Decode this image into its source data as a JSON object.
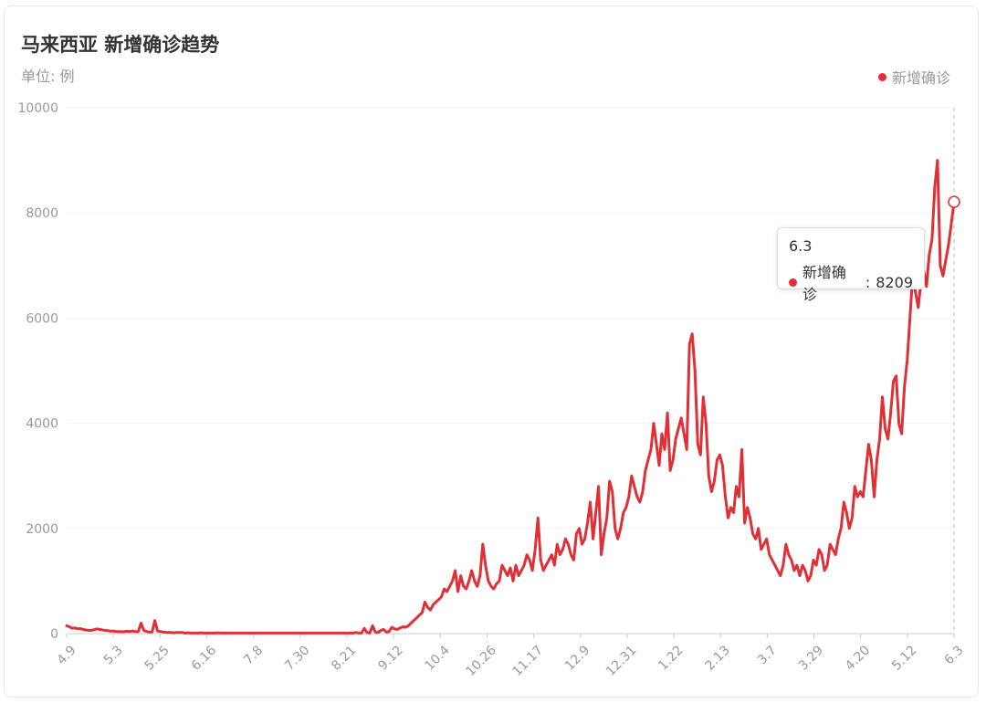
{
  "title": "马来西亚 新增确诊趋势",
  "subtitle": "单位: 例",
  "colors": {
    "line": "#e03036",
    "grid": "#f2f2f2",
    "axis": "#cccccc",
    "text": "#999999"
  },
  "tooltip": {
    "date": "6.3",
    "series_label": "新增确诊",
    "value": "8209"
  },
  "chart_data": {
    "type": "line",
    "ylim": [
      0,
      10000
    ],
    "y_ticks": [
      "0",
      "2000",
      "4000",
      "6000",
      "8000",
      "10000"
    ],
    "x_ticks": [
      "4.9",
      "5.3",
      "5.25",
      "6.16",
      "7.8",
      "7.30",
      "8.21",
      "9.12",
      "10.4",
      "10.26",
      "11.17",
      "12.9",
      "12.31",
      "1.22",
      "2.13",
      "3.7",
      "3.29",
      "4.20",
      "5.12",
      "6.3"
    ],
    "legend": "top-right",
    "series": [
      {
        "name": "新增确诊",
        "values": [
          150,
          130,
          100,
          110,
          90,
          95,
          80,
          70,
          60,
          60,
          75,
          90,
          80,
          70,
          60,
          55,
          45,
          50,
          40,
          40,
          35,
          40,
          45,
          40,
          50,
          40,
          40,
          200,
          60,
          40,
          30,
          30,
          250,
          50,
          40,
          30,
          25,
          20,
          20,
          15,
          20,
          20,
          20,
          10,
          15,
          10,
          10,
          10,
          10,
          15,
          10,
          10,
          10,
          10,
          10,
          15,
          10,
          10,
          10,
          10,
          10,
          10,
          10,
          10,
          10,
          10,
          10,
          10,
          10,
          10,
          10,
          10,
          10,
          10,
          10,
          10,
          10,
          10,
          10,
          10,
          10,
          10,
          10,
          10,
          10,
          10,
          10,
          10,
          10,
          10,
          10,
          10,
          10,
          10,
          10,
          10,
          10,
          10,
          10,
          10,
          10,
          10,
          10,
          10,
          10,
          20,
          10,
          10,
          100,
          20,
          10,
          150,
          30,
          20,
          60,
          80,
          30,
          40,
          120,
          90,
          80,
          110,
          130,
          120,
          150,
          200,
          250,
          300,
          350,
          400,
          600,
          500,
          450,
          550,
          600,
          650,
          700,
          850,
          800,
          900,
          1000,
          1200,
          800,
          1100,
          900,
          850,
          1000,
          1200,
          1000,
          900,
          1100,
          1700,
          1300,
          1000,
          900,
          850,
          950,
          1000,
          1300,
          1200,
          1100,
          1250,
          1000,
          1300,
          1100,
          1200,
          1300,
          1500,
          1400,
          1200,
          1600,
          2200,
          1400,
          1200,
          1300,
          1400,
          1500,
          1300,
          1700,
          1500,
          1600,
          1800,
          1700,
          1500,
          1400,
          1900,
          2000,
          1700,
          1800,
          2100,
          2500,
          1800,
          2300,
          2800,
          1500,
          1900,
          2200,
          2900,
          2700,
          2000,
          1800,
          2000,
          2300,
          2400,
          2600,
          3000,
          2800,
          2600,
          2500,
          2700,
          3100,
          3300,
          3500,
          4000,
          3600,
          3200,
          3800,
          3500,
          4200,
          3100,
          3300,
          3700,
          3900,
          4100,
          3800,
          3500,
          5500,
          5700,
          5000,
          3600,
          3400,
          4500,
          4000,
          3000,
          2700,
          2900,
          3300,
          3400,
          3200,
          2600,
          2200,
          2400,
          2300,
          2800,
          2600,
          3500,
          2100,
          2400,
          2200,
          1900,
          1800,
          2000,
          1600,
          1700,
          1800,
          1500,
          1400,
          1300,
          1200,
          1100,
          1300,
          1700,
          1500,
          1400,
          1200,
          1300,
          1100,
          1300,
          1200,
          1000,
          1100,
          1400,
          1300,
          1600,
          1500,
          1200,
          1300,
          1700,
          1600,
          1500,
          1800,
          2000,
          2500,
          2300,
          2000,
          2200,
          2800,
          2600,
          2700,
          2600,
          3100,
          3600,
          3300,
          2600,
          3300,
          3700,
          4500,
          3900,
          3700,
          4200,
          4800,
          4900,
          4000,
          3800,
          4700,
          5200,
          6000,
          6800,
          6500,
          6200,
          6700,
          6900,
          6600,
          7200,
          7500,
          8500,
          9000,
          7000,
          6800,
          7100,
          7400,
          7800,
          8209
        ]
      }
    ]
  }
}
